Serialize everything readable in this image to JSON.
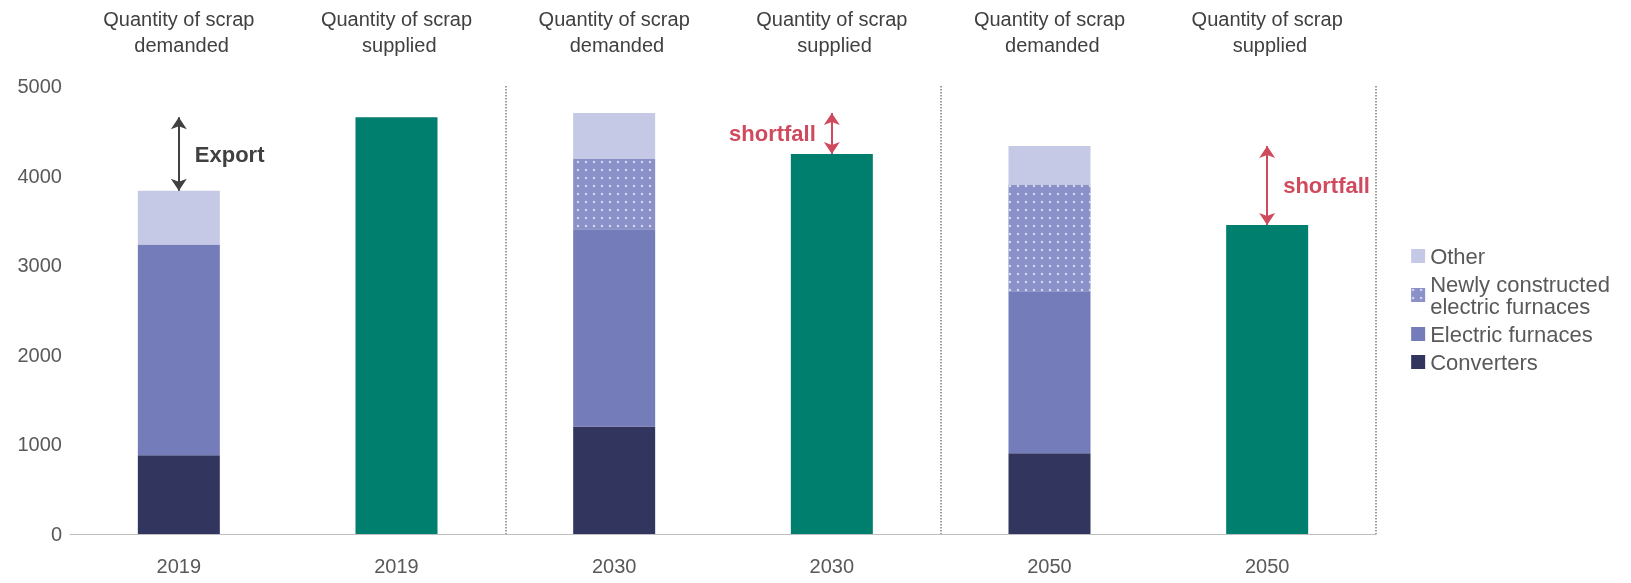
{
  "chart_data": {
    "type": "bar",
    "stacked": true,
    "categories": [
      "2019",
      "2019",
      "2030",
      "2030",
      "2050",
      "2050"
    ],
    "series": [
      {
        "name": "Converters",
        "color": "#32365f",
        "values": [
          880,
          null,
          1200,
          null,
          900,
          null
        ]
      },
      {
        "name": "Electric furnaces",
        "color": "#747cba",
        "values": [
          2350,
          null,
          2200,
          null,
          1810,
          null
        ]
      },
      {
        "name": "Newly constructed electric furnaces",
        "color": "#8a90c8",
        "values": [
          null,
          null,
          790,
          null,
          1190,
          null
        ]
      },
      {
        "name": "Other",
        "color": "#c5c9e5",
        "values": [
          600,
          null,
          510,
          null,
          430,
          null
        ]
      },
      {
        "color": "#007f6e",
        "values": [
          null,
          4650,
          null,
          4240,
          null,
          3450
        ]
      }
    ],
    "ylim": [
      0,
      5000
    ],
    "yticks": [
      0,
      1000,
      2000,
      3000,
      4000,
      5000
    ],
    "grid": false,
    "legend": "right",
    "annotations": [
      "Quantity of scrap demanded",
      "Quantity of scrap supplied",
      "Quantity of scrap demanded",
      "Quantity of scrap supplied",
      "Quantity of scrap demanded",
      "Quantity of scrap supplied",
      "Export",
      "shortfall",
      "shortfall"
    ]
  }
}
